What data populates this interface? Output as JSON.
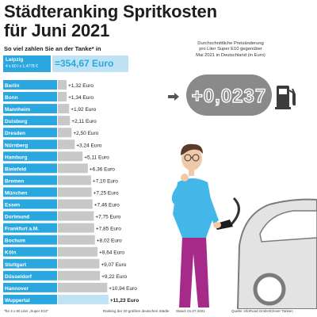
{
  "header": {
    "title_line1": "Städteranking Spritkosten",
    "title_line2": "für Juni 2021",
    "subtitle": "So viel zahlen Sie an der Tanke* in"
  },
  "reference": {
    "city": "Leipzig",
    "formula": "4 x 60 l x 1,4778 €",
    "total": "=354,67 Euro"
  },
  "info": {
    "description_lines": [
      "Durchschnittliche Preisänderung",
      "pro Liter Super E10 gegenüber",
      "Mai 2021 in Deutschland (in Euro)"
    ],
    "price_change": "+0,0237"
  },
  "footer": {
    "note": "*für 4 x 60 Liter „Super E10\"",
    "ranking": "Ranking der 20 größten deutschen Städte",
    "date": "Stand: 01.07.2021",
    "source": "Quelle: infoRoad GmbH/Clever Tanken"
  },
  "icons": [
    "arrow-right-icon",
    "fuel-pump-icon"
  ],
  "colors": {
    "accent": "#2aa7df",
    "accent_light": "#bfe3f4",
    "bar_gray": "#c8c8c8",
    "display_gray": "#8a8a8a"
  },
  "chart_data": {
    "type": "bar",
    "orientation": "horizontal",
    "title": "Städteranking Spritkosten",
    "unit": "Euro",
    "categories": [
      "Berlin",
      "Bonn",
      "Mannheim",
      "Duisburg",
      "Dresden",
      "Nürnberg",
      "Hamburg",
      "Bielefeld",
      "Bremen",
      "München",
      "Essen",
      "Dortmund",
      "Frankfurt a.M.",
      "Bochum",
      "Köln",
      "Stuttgart",
      "Düsseldorf",
      "Hannover",
      "Wuppertal"
    ],
    "values": [
      1.32,
      1.34,
      1.92,
      2.11,
      2.5,
      3.24,
      5.11,
      6.36,
      7.1,
      7.25,
      7.46,
      7.75,
      7.85,
      8.02,
      8.64,
      9.07,
      9.22,
      10.94,
      11.23
    ],
    "value_labels": [
      "+1,32 Euro",
      "+1,34 Euro",
      "+1,92 Euro",
      "+2,11 Euro",
      "+2,50 Euro",
      "+3,24 Euro",
      "+5,11 Euro",
      "+6,36 Euro",
      "+7,10 Euro",
      "+7,25 Euro",
      "+7,46 Euro",
      "+7,75 Euro",
      "+7,85 Euro",
      "+8,02 Euro",
      "+8,64 Euro",
      "+9,07 Euro",
      "+9,22 Euro",
      "+10,94 Euro",
      "+11,23 Euro"
    ],
    "highlight_last": true
  }
}
